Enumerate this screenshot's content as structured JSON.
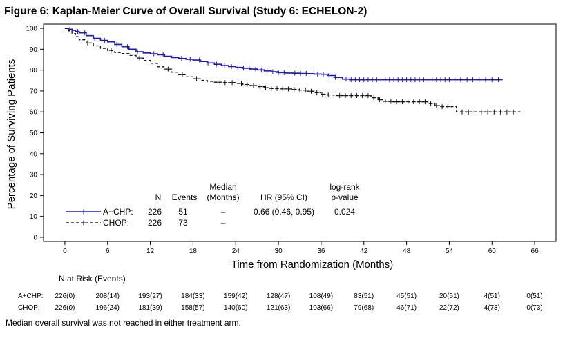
{
  "figure_title": "Figure 6: Kaplan-Meier Curve of Overall Survival (Study 6: ECHELON-2)",
  "footnote": "Median overall survival was not reached in either treatment arm.",
  "chart_data": {
    "type": "line",
    "title": "Figure 6: Kaplan-Meier Curve of Overall Survival (Study 6: ECHELON-2)",
    "xlabel": "Time from Randomization (Months)",
    "ylabel": "Percentage of Surviving Patients",
    "xlim": [
      -3,
      69
    ],
    "ylim": [
      -2,
      102
    ],
    "x_ticks": [
      0,
      6,
      12,
      18,
      24,
      30,
      36,
      42,
      48,
      54,
      60,
      66
    ],
    "y_ticks": [
      0,
      10,
      20,
      30,
      40,
      50,
      60,
      70,
      80,
      90,
      100
    ],
    "grid": false,
    "censor_marker": "+",
    "series": [
      {
        "name": "A+CHP",
        "color": "#1a1ab4",
        "line_style": "solid",
        "points": [
          [
            0,
            100
          ],
          [
            0.5,
            99.6
          ],
          [
            1,
            99
          ],
          [
            1.5,
            98.5
          ],
          [
            2,
            97.8
          ],
          [
            3,
            96.5
          ],
          [
            4,
            95.2
          ],
          [
            5,
            94.2
          ],
          [
            6,
            93.5
          ],
          [
            7,
            92.3
          ],
          [
            8,
            91.2
          ],
          [
            9,
            90
          ],
          [
            10,
            88.8
          ],
          [
            11,
            88.2
          ],
          [
            12,
            87.8
          ],
          [
            13,
            87.3
          ],
          [
            14,
            86.6
          ],
          [
            15,
            86
          ],
          [
            16,
            85.6
          ],
          [
            17,
            85.2
          ],
          [
            18,
            84.8
          ],
          [
            19,
            84.1
          ],
          [
            20,
            83.4
          ],
          [
            21,
            82.8
          ],
          [
            22,
            82.2
          ],
          [
            23,
            81.7
          ],
          [
            24,
            81.3
          ],
          [
            25,
            80.9
          ],
          [
            26,
            80.5
          ],
          [
            27,
            80.1
          ],
          [
            28,
            79.6
          ],
          [
            29,
            79.2
          ],
          [
            30,
            78.8
          ],
          [
            31,
            78.6
          ],
          [
            32,
            78.5
          ],
          [
            33,
            78.4
          ],
          [
            34,
            78.3
          ],
          [
            35,
            78.1
          ],
          [
            36,
            78
          ],
          [
            37,
            77.4
          ],
          [
            38,
            76.5
          ],
          [
            39,
            75.7
          ],
          [
            40,
            75.4
          ],
          [
            42,
            75.4
          ],
          [
            50,
            75.4
          ],
          [
            61.5,
            75.4
          ]
        ],
        "censor_times": [
          0.7,
          1.8,
          2.8,
          4.2,
          5.6,
          7.3,
          8.8,
          10.2,
          12.5,
          13.8,
          15.2,
          16.4,
          17.6,
          18.9,
          20.1,
          21.3,
          22.4,
          23.4,
          24.3,
          25.1,
          25.9,
          26.8,
          27.6,
          28.4,
          29.2,
          30,
          30.8,
          31.5,
          32.3,
          33.1,
          33.9,
          34.7,
          35.5,
          36.3,
          37.1,
          38,
          39.5,
          40.2,
          40.8,
          41.4,
          42,
          42.6,
          43.2,
          43.8,
          44.4,
          45,
          45.6,
          46.2,
          46.8,
          47.4,
          48,
          48.6,
          49.2,
          49.8,
          50.4,
          51,
          51.6,
          52.2,
          52.8,
          53.4,
          54,
          54.8,
          55.6,
          56.5,
          57.3,
          58.2,
          59.1,
          60,
          60.9
        ]
      },
      {
        "name": "CHOP",
        "color": "#111111",
        "line_style": "dashed",
        "points": [
          [
            0,
            100
          ],
          [
            0.5,
            98.8
          ],
          [
            1,
            97.5
          ],
          [
            1.5,
            96
          ],
          [
            2,
            94.5
          ],
          [
            3,
            93
          ],
          [
            4,
            91.6
          ],
          [
            5,
            90.4
          ],
          [
            6,
            89.4
          ],
          [
            7,
            88.4
          ],
          [
            8,
            87.9
          ],
          [
            9,
            87
          ],
          [
            10,
            85.8
          ],
          [
            11,
            84.6
          ],
          [
            12,
            83.2
          ],
          [
            13,
            81.6
          ],
          [
            14,
            80.5
          ],
          [
            15,
            79
          ],
          [
            16,
            77.8
          ],
          [
            17,
            76.8
          ],
          [
            18,
            75.9
          ],
          [
            19,
            75.1
          ],
          [
            20,
            74.6
          ],
          [
            21,
            74.2
          ],
          [
            22,
            74
          ],
          [
            23,
            74
          ],
          [
            24,
            73.6
          ],
          [
            25,
            73.1
          ],
          [
            26,
            72.6
          ],
          [
            27,
            72.1
          ],
          [
            28,
            71.6
          ],
          [
            29,
            71.2
          ],
          [
            30,
            71
          ],
          [
            32,
            70.8
          ],
          [
            33,
            70.4
          ],
          [
            34,
            69.9
          ],
          [
            35,
            69.2
          ],
          [
            36,
            68.5
          ],
          [
            37,
            68.1
          ],
          [
            38,
            67.8
          ],
          [
            42,
            67.8
          ],
          [
            43,
            66.8
          ],
          [
            44,
            65.8
          ],
          [
            45,
            65
          ],
          [
            46,
            64.8
          ],
          [
            50,
            64.8
          ],
          [
            51,
            64
          ],
          [
            52,
            63
          ],
          [
            53,
            62.5
          ],
          [
            54,
            62.5
          ],
          [
            55,
            60
          ],
          [
            64,
            60
          ]
        ],
        "censor_times": [
          3.2,
          6.5,
          10.5,
          14.5,
          16.5,
          18.5,
          21.5,
          22.5,
          23.5,
          24.8,
          25.6,
          26.5,
          27.4,
          28.2,
          29,
          29.8,
          30.6,
          31.4,
          32.2,
          33,
          33.8,
          34.6,
          35.4,
          36.2,
          37,
          37.8,
          38.6,
          39.4,
          40.2,
          41,
          41.8,
          42.6,
          43.4,
          44.2,
          45,
          45.8,
          46.6,
          47.4,
          48.2,
          49,
          49.8,
          50.6,
          51.4,
          52.2,
          53,
          53.8,
          55.8,
          56.7,
          57.6,
          58.5,
          59.4,
          60.3,
          61.2,
          62.1,
          63
        ]
      }
    ]
  },
  "stats_table": {
    "headers": {
      "n": "N",
      "events": "Events",
      "median_line1": "Median",
      "median_line2": "(Months)",
      "hr": "HR (95% CI)",
      "logrank_line1": "log-rank",
      "logrank_line2": "p-value"
    },
    "rows": [
      {
        "label": "A+CHP:",
        "n": "226",
        "events": "51",
        "median": "–",
        "hr": "0.66 (0.46, 0.95)",
        "pvalue": "0.024"
      },
      {
        "label": "CHOP:",
        "n": "226",
        "events": "73",
        "median": "–",
        "hr": "",
        "pvalue": ""
      }
    ]
  },
  "risk_table": {
    "title": "N at Risk (Events)",
    "times": [
      0,
      6,
      12,
      18,
      24,
      30,
      36,
      42,
      48,
      54,
      60,
      66
    ],
    "rows": [
      {
        "label": "A+CHP:",
        "values": [
          "226(0)",
          "208(14)",
          "193(27)",
          "184(33)",
          "159(42)",
          "128(47)",
          "108(49)",
          "83(51)",
          "45(51)",
          "20(51)",
          "4(51)",
          "0(51)"
        ]
      },
      {
        "label": "CHOP:",
        "values": [
          "226(0)",
          "196(24)",
          "181(39)",
          "158(57)",
          "140(60)",
          "121(63)",
          "103(66)",
          "79(68)",
          "46(71)",
          "22(72)",
          "4(73)",
          "0(73)"
        ]
      }
    ]
  }
}
